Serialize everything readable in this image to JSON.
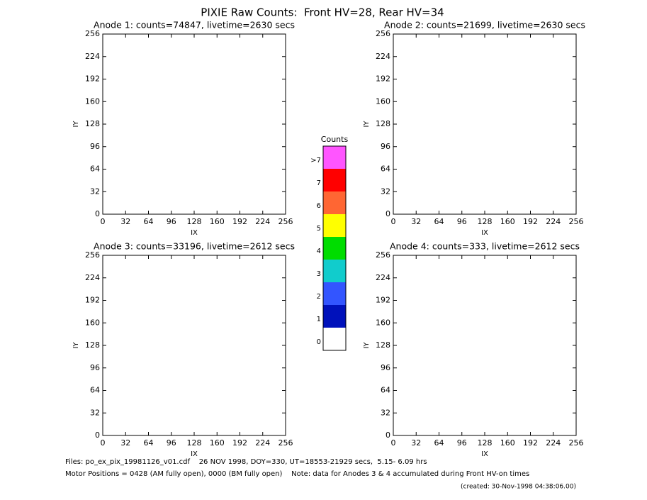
{
  "title": "PIXIE Raw Counts:  Front HV=28, Rear HV=34",
  "chart_data": [
    {
      "type": "heatmap",
      "title": "Anode 1: counts=74847, livetime=2630 secs",
      "xlabel": "IX",
      "ylabel": "IY",
      "xlim": [
        0,
        256
      ],
      "ylim": [
        0,
        256
      ],
      "xticks": [
        0,
        32,
        64,
        96,
        128,
        160,
        192,
        224,
        256
      ],
      "yticks": [
        0,
        32,
        64,
        96,
        128,
        160,
        192,
        224,
        256
      ]
    },
    {
      "type": "heatmap",
      "title": "Anode 2: counts=21699, livetime=2630 secs",
      "xlabel": "IX",
      "ylabel": "IY",
      "xlim": [
        0,
        256
      ],
      "ylim": [
        0,
        256
      ],
      "xticks": [
        0,
        32,
        64,
        96,
        128,
        160,
        192,
        224,
        256
      ],
      "yticks": [
        0,
        32,
        64,
        96,
        128,
        160,
        192,
        224,
        256
      ]
    },
    {
      "type": "heatmap",
      "title": "Anode 3: counts=33196, livetime=2612 secs",
      "xlabel": "IX",
      "ylabel": "IY",
      "xlim": [
        0,
        256
      ],
      "ylim": [
        0,
        256
      ],
      "xticks": [
        0,
        32,
        64,
        96,
        128,
        160,
        192,
        224,
        256
      ],
      "yticks": [
        0,
        32,
        64,
        96,
        128,
        160,
        192,
        224,
        256
      ]
    },
    {
      "type": "heatmap",
      "title": "Anode 4: counts=333, livetime=2612 secs",
      "xlabel": "IX",
      "ylabel": "IY",
      "xlim": [
        0,
        256
      ],
      "ylim": [
        0,
        256
      ],
      "xticks": [
        0,
        32,
        64,
        96,
        128,
        160,
        192,
        224,
        256
      ],
      "yticks": [
        0,
        32,
        64,
        96,
        128,
        160,
        192,
        224,
        256
      ]
    }
  ],
  "colorbar": {
    "title": "Counts",
    "labels": [
      ">7",
      "7",
      "6",
      "5",
      "4",
      "3",
      "2",
      "1",
      "0"
    ],
    "colors": [
      "#ff55ff",
      "#ff0000",
      "#ff6633",
      "#ffff00",
      "#00dd00",
      "#11cccc",
      "#3355ff",
      "#0011bb",
      "#ffffff"
    ]
  },
  "footer": [
    "Files: po_ex_pix_19981126_v01.cdf    26 NOV 1998, DOY=330, UT=18553-21929 secs,  5.15- 6.09 hrs",
    "Motor Positions = 0428 (AM fully open), 0000 (BM fully open)    Note: data for Anodes 3 & 4 accumulated during Front HV-on times",
    "(created: 30-Nov-1998 04:38:06.00)"
  ]
}
